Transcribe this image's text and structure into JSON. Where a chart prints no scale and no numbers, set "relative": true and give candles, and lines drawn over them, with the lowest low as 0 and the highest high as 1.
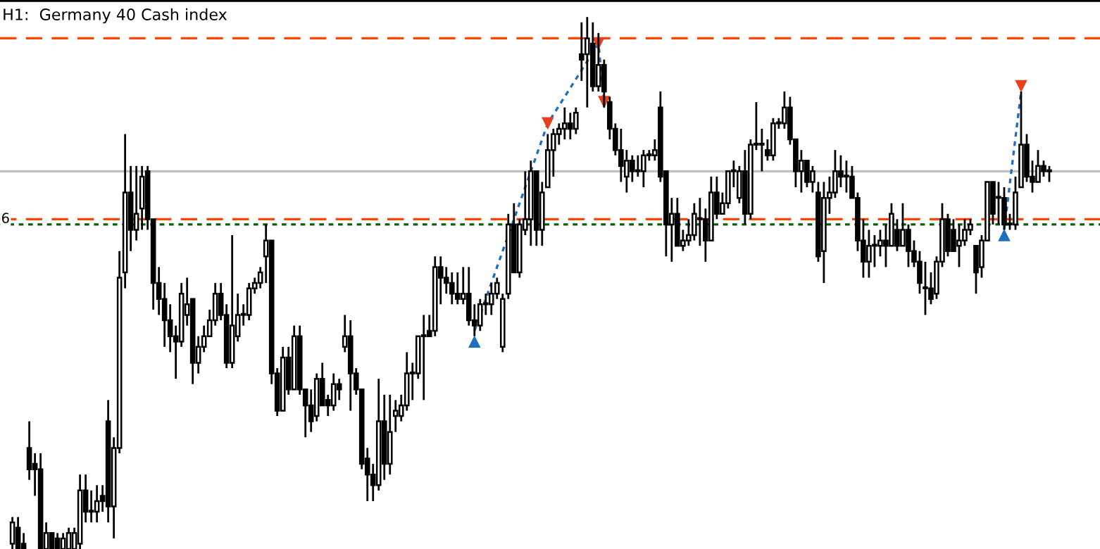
{
  "chart_data": {
    "type": "candlestick",
    "title": "H1:  Germany 40 Cash index",
    "relative": true,
    "annotations": [
      {
        "text": "6",
        "y": 0.62
      }
    ],
    "categories": [
      null,
      null,
      null,
      null,
      null,
      null,
      null,
      null,
      null,
      null,
      null,
      null,
      null,
      null,
      null,
      null,
      null,
      null,
      null,
      null,
      null,
      null,
      null,
      null,
      null,
      null,
      null,
      null,
      null,
      null,
      null,
      null,
      null,
      null,
      null,
      null,
      null,
      null,
      null,
      null,
      null,
      null,
      null,
      null,
      null,
      null,
      null,
      null,
      null,
      null,
      null,
      null,
      null,
      null,
      null,
      null,
      null,
      null,
      null,
      null,
      null,
      null,
      null,
      null,
      null,
      null,
      null,
      null,
      null,
      null,
      null,
      null,
      null,
      null,
      null,
      null,
      null,
      null,
      null,
      null,
      null,
      null,
      null,
      null,
      null,
      null,
      null,
      null,
      null,
      null,
      null,
      null,
      null,
      null,
      null,
      null,
      null,
      null,
      null,
      null,
      null,
      null,
      null,
      null,
      null,
      null,
      null,
      null,
      null,
      null,
      null,
      null,
      null,
      null,
      null,
      null,
      null,
      null,
      null,
      null,
      null,
      null,
      null,
      null,
      null,
      null,
      null,
      null,
      null,
      null,
      null,
      null,
      null,
      null,
      null,
      null,
      null,
      null,
      null,
      null,
      null,
      null,
      null,
      null,
      null,
      null,
      null,
      null,
      null,
      null,
      null,
      null,
      null,
      null,
      null,
      null,
      null,
      null,
      null,
      null,
      null,
      null,
      null,
      null,
      null,
      null,
      null,
      null,
      null,
      null,
      null,
      null,
      null,
      null,
      null,
      null,
      null,
      null,
      null,
      null,
      null,
      null,
      null,
      null,
      null
    ],
    "ohlc": [
      [
        0.01,
        0.06,
        0,
        0.05
      ],
      [
        0.04,
        0.06,
        0,
        0
      ],
      [
        0.01,
        0.03,
        0,
        0
      ],
      [
        0.19,
        0.24,
        0.13,
        0.15
      ],
      [
        0.16,
        0.18,
        0.1,
        0.15
      ],
      [
        0.15,
        0.18,
        0,
        0
      ],
      [
        0,
        0.05,
        0,
        0.03
      ],
      [
        0.03,
        0.03,
        0,
        0
      ],
      [
        0.02,
        0.03,
        0,
        0
      ],
      [
        0,
        0.03,
        0,
        0.02
      ],
      [
        0,
        0.04,
        0,
        0.03
      ],
      [
        0,
        0.04,
        0,
        0.03
      ],
      [
        0.01,
        0.14,
        0,
        0.11
      ],
      [
        0.11,
        0.14,
        0.05,
        0.07
      ],
      [
        0.07,
        0.11,
        0.05,
        0.07
      ],
      [
        0.07,
        0.12,
        0.05,
        0.09
      ],
      [
        0.1,
        0.12,
        0.07,
        0.09
      ],
      [
        0.24,
        0.28,
        0.05,
        0.08
      ],
      [
        0.08,
        0.21,
        0.02,
        0.19
      ],
      [
        0.19,
        0.56,
        0.18,
        0.51
      ],
      [
        0.52,
        0.78,
        0.49,
        0.67
      ],
      [
        0.67,
        0.72,
        0.56,
        0.6
      ],
      [
        0.6,
        0.72,
        0.58,
        0.63
      ],
      [
        0.64,
        0.72,
        0.6,
        0.7
      ],
      [
        0.71,
        0.72,
        0.6,
        0.62
      ],
      [
        0.62,
        0.62,
        0.45,
        0.5
      ],
      [
        0.5,
        0.53,
        0.44,
        0.47
      ],
      [
        0.47,
        0.5,
        0.38,
        0.43
      ],
      [
        0.43,
        0.46,
        0.37,
        0.4
      ],
      [
        0.4,
        0.42,
        0.32,
        0.39
      ],
      [
        0.39,
        0.5,
        0.38,
        0.48
      ],
      [
        0.44,
        0.51,
        0.42,
        0.46
      ],
      [
        0.47,
        0.47,
        0.31,
        0.35
      ],
      [
        0.35,
        0.4,
        0.33,
        0.38
      ],
      [
        0.38,
        0.42,
        0.37,
        0.4
      ],
      [
        0.4,
        0.45,
        0.4,
        0.43
      ],
      [
        0.43,
        0.5,
        0.42,
        0.48
      ],
      [
        0.48,
        0.5,
        0.43,
        0.44
      ],
      [
        0.44,
        0.46,
        0.34,
        0.35
      ],
      [
        0.35,
        0.59,
        0.34,
        0.42
      ],
      [
        0.4,
        0.48,
        0.39,
        0.44
      ],
      [
        0.44,
        0.46,
        0.42,
        0.44
      ],
      [
        0.44,
        0.5,
        0.43,
        0.49
      ],
      [
        0.49,
        0.51,
        0.48,
        0.5
      ],
      [
        0.5,
        0.53,
        0.49,
        0.52
      ],
      [
        0.55,
        0.61,
        0.5,
        0.58
      ],
      [
        0.58,
        0.58,
        0.31,
        0.33
      ],
      [
        0.33,
        0.34,
        0.25,
        0.26
      ],
      [
        0.26,
        0.38,
        0.26,
        0.36
      ],
      [
        0.36,
        0.38,
        0.29,
        0.3
      ],
      [
        0.3,
        0.42,
        0.3,
        0.4
      ],
      [
        0.4,
        0.42,
        0.29,
        0.3
      ],
      [
        0.3,
        0.3,
        0.21,
        0.27
      ],
      [
        0.27,
        0.3,
        0.22,
        0.24
      ],
      [
        0.25,
        0.33,
        0.24,
        0.32
      ],
      [
        0.32,
        0.35,
        0.27,
        0.27
      ],
      [
        0.28,
        0.29,
        0.25,
        0.27
      ],
      [
        0.27,
        0.33,
        0.26,
        0.31
      ],
      [
        0.31,
        0.32,
        0.28,
        0.3
      ],
      [
        0.38,
        0.44,
        0.37,
        0.4
      ],
      [
        0.4,
        0.43,
        0.26,
        0.33
      ],
      [
        0.33,
        0.34,
        0.29,
        0.3
      ],
      [
        0.3,
        0.3,
        0.15,
        0.16
      ],
      [
        0.17,
        0.19,
        0.09,
        0.14
      ],
      [
        0.14,
        0.16,
        0.09,
        0.12
      ],
      [
        0.12,
        0.32,
        0.11,
        0.24
      ],
      [
        0.24,
        0.29,
        0.13,
        0.16
      ],
      [
        0.16,
        0.29,
        0.14,
        0.22
      ],
      [
        0.25,
        0.28,
        0.22,
        0.26
      ],
      [
        0.25,
        0.29,
        0.24,
        0.27
      ],
      [
        0.27,
        0.37,
        0.26,
        0.33
      ],
      [
        0.33,
        0.35,
        0.28,
        0.33
      ],
      [
        0.33,
        0.4,
        0.32,
        0.4
      ],
      [
        0.4,
        0.44,
        0.28,
        0.4
      ],
      [
        0.41,
        0.44,
        0.4,
        0.4
      ],
      [
        0.41,
        0.55,
        0.4,
        0.53
      ],
      [
        0.53,
        0.55,
        0.46,
        0.51
      ],
      [
        0.51,
        0.53,
        0.48,
        0.5
      ],
      [
        0.5,
        0.52,
        0.46,
        0.48
      ],
      [
        0.48,
        0.52,
        0.46,
        0.47
      ],
      [
        0.47,
        0.53,
        0.46,
        0.48
      ],
      [
        0.48,
        0.53,
        0.42,
        0.43
      ],
      [
        0.43,
        0.46,
        0.4,
        0.42
      ],
      [
        0.42,
        0.47,
        0.41,
        0.46
      ],
      [
        0.46,
        0.48,
        0.44,
        0.46
      ],
      [
        0.46,
        0.5,
        0.44,
        0.48
      ],
      [
        0.48,
        0.51,
        0.47,
        0.5
      ],
      [
        0.38,
        0.48,
        0.37,
        0.47
      ],
      [
        0.48,
        0.63,
        0.47,
        0.61
      ],
      [
        0.61,
        0.65,
        0.52,
        0.52
      ],
      [
        0.52,
        0.62,
        0.51,
        0.61
      ],
      [
        0.6,
        0.71,
        0.59,
        0.62
      ],
      [
        0.62,
        0.73,
        0.57,
        0.71
      ],
      [
        0.71,
        0.71,
        0.57,
        0.6
      ],
      [
        0.6,
        0.69,
        0.57,
        0.67
      ],
      [
        0.68,
        0.78,
        0.68,
        0.75
      ],
      [
        0.75,
        0.79,
        0.7,
        0.78
      ],
      [
        0.78,
        0.8,
        0.76,
        0.79
      ],
      [
        0.79,
        0.83,
        0.77,
        0.8
      ],
      [
        0.8,
        0.82,
        0.77,
        0.79
      ],
      [
        0.79,
        0.83,
        0.78,
        0.82
      ],
      [
        0.93,
        0.99,
        0.88,
        0.92
      ],
      [
        0.93,
        1,
        0.83,
        0.96
      ],
      [
        0.95,
        0.99,
        0.86,
        0.87
      ],
      [
        0.87,
        0.97,
        0.86,
        0.91
      ],
      [
        0.91,
        0.92,
        0.83,
        0.86
      ],
      [
        0.84,
        0.85,
        0.77,
        0.79
      ],
      [
        0.79,
        0.8,
        0.74,
        0.75
      ],
      [
        0.75,
        0.79,
        0.69,
        0.72
      ],
      [
        0.7,
        0.75,
        0.67,
        0.73
      ],
      [
        0.73,
        0.74,
        0.69,
        0.71
      ],
      [
        0.71,
        0.74,
        0.7,
        0.71
      ],
      [
        0.71,
        0.75,
        0.68,
        0.74
      ],
      [
        0.74,
        0.75,
        0.73,
        0.74
      ],
      [
        0.74,
        0.77,
        0.73,
        0.75
      ],
      [
        0.83,
        0.86,
        0.69,
        0.7
      ],
      [
        0.71,
        0.71,
        0.55,
        0.61
      ],
      [
        0.61,
        0.66,
        0.54,
        0.63
      ],
      [
        0.63,
        0.66,
        0.57,
        0.57
      ],
      [
        0.57,
        0.6,
        0.56,
        0.58
      ],
      [
        0.58,
        0.62,
        0.57,
        0.59
      ],
      [
        0.59,
        0.65,
        0.58,
        0.63
      ],
      [
        0.62,
        0.66,
        0.57,
        0.62
      ],
      [
        0.62,
        0.64,
        0.54,
        0.58
      ],
      [
        0.58,
        0.7,
        0.58,
        0.67
      ],
      [
        0.67,
        0.7,
        0.62,
        0.63
      ],
      [
        0.63,
        0.67,
        0.63,
        0.65
      ],
      [
        0.65,
        0.71,
        0.64,
        0.71
      ],
      [
        0.71,
        0.73,
        0.68,
        0.71
      ],
      [
        0.66,
        0.72,
        0.65,
        0.71
      ],
      [
        0.71,
        0.75,
        0.61,
        0.63
      ],
      [
        0.63,
        0.77,
        0.62,
        0.76
      ],
      [
        0.76,
        0.84,
        0.75,
        0.76
      ],
      [
        0.76,
        0.79,
        0.71,
        0.76
      ],
      [
        0.75,
        0.77,
        0.73,
        0.74
      ],
      [
        0.74,
        0.81,
        0.73,
        0.8
      ],
      [
        0.8,
        0.81,
        0.79,
        0.8
      ],
      [
        0.8,
        0.86,
        0.79,
        0.83
      ],
      [
        0.83,
        0.85,
        0.76,
        0.77
      ],
      [
        0.77,
        0.77,
        0.68,
        0.71
      ],
      [
        0.71,
        0.75,
        0.67,
        0.73
      ],
      [
        0.73,
        0.73,
        0.68,
        0.69
      ],
      [
        0.69,
        0.72,
        0.67,
        0.71
      ],
      [
        0.67,
        0.69,
        0.54,
        0.55
      ],
      [
        0.56,
        0.69,
        0.5,
        0.66
      ],
      [
        0.66,
        0.7,
        0.63,
        0.67
      ],
      [
        0.67,
        0.75,
        0.66,
        0.71
      ],
      [
        0.71,
        0.74,
        0.68,
        0.7
      ],
      [
        0.7,
        0.73,
        0.67,
        0.7
      ],
      [
        0.7,
        0.72,
        0.66,
        0.66
      ],
      [
        0.66,
        0.67,
        0.56,
        0.58
      ],
      [
        0.58,
        0.62,
        0.51,
        0.54
      ],
      [
        0.54,
        0.6,
        0.51,
        0.57
      ],
      [
        0.57,
        0.59,
        0.53,
        0.57
      ],
      [
        0.57,
        0.6,
        0.55,
        0.58
      ],
      [
        0.58,
        0.61,
        0.53,
        0.57
      ],
      [
        0.57,
        0.65,
        0.57,
        0.63
      ],
      [
        0.6,
        0.62,
        0.56,
        0.57
      ],
      [
        0.57,
        0.65,
        0.57,
        0.6
      ],
      [
        0.6,
        0.61,
        0.53,
        0.56
      ],
      [
        0.56,
        0.58,
        0.53,
        0.54
      ],
      [
        0.54,
        0.56,
        0.48,
        0.5
      ],
      [
        0.49,
        0.54,
        0.44,
        0.49
      ],
      [
        0.49,
        0.52,
        0.46,
        0.47
      ],
      [
        0.48,
        0.55,
        0.47,
        0.54
      ],
      [
        0.54,
        0.65,
        0.53,
        0.62
      ],
      [
        0.62,
        0.63,
        0.55,
        0.56
      ],
      [
        0.6,
        0.62,
        0.56,
        0.56
      ],
      [
        0.57,
        0.61,
        0.53,
        0.58
      ],
      [
        0.58,
        0.62,
        0.57,
        0.6
      ],
      [
        0.6,
        0.62,
        0.59,
        0.61
      ],
      [
        0.57,
        0.57,
        0.48,
        0.52
      ],
      [
        0.53,
        0.59,
        0.51,
        0.58
      ],
      [
        0.58,
        0.69,
        0.58,
        0.69
      ],
      [
        0.69,
        0.69,
        0.61,
        0.63
      ],
      [
        0.66,
        0.69,
        0.61,
        0.66
      ],
      [
        0.66,
        0.68,
        0.6,
        0.61
      ],
      [
        0.61,
        0.63,
        0.6,
        0.61
      ],
      [
        0.61,
        0.7,
        0.6,
        0.67
      ],
      [
        0.68,
        0.86,
        0.68,
        0.76
      ],
      [
        0.76,
        0.78,
        0.69,
        0.7
      ],
      [
        0.7,
        0.73,
        0.67,
        0.69
      ],
      [
        0.69,
        0.75,
        0.69,
        0.72
      ],
      [
        0.72,
        0.73,
        0.7,
        0.71
      ],
      [
        0.71,
        0.72,
        0.69,
        0.71
      ]
    ],
    "color": "#000000",
    "series": [
      {
        "type": "line",
        "color": "#1e6fc0",
        "line_style": "dotted",
        "values": [
          null,
          null,
          null,
          null,
          null,
          null,
          null,
          null,
          null,
          null,
          null,
          null,
          null,
          null,
          null,
          null,
          null,
          null,
          null,
          null,
          null,
          null,
          null,
          null,
          null,
          null,
          null,
          null,
          null,
          null,
          null,
          null,
          null,
          null,
          null,
          null,
          null,
          null,
          null,
          null,
          null,
          null,
          null,
          null,
          null,
          null,
          null,
          null,
          null,
          null,
          null,
          null,
          null,
          null,
          null,
          null,
          null,
          null,
          null,
          null,
          null,
          null,
          null,
          null,
          null,
          null,
          null,
          null,
          null,
          null,
          null,
          null,
          null,
          null,
          null,
          null,
          null,
          null,
          null,
          null,
          null,
          null,
          0.41,
          null,
          null,
          null,
          null,
          null,
          null,
          null,
          null,
          null,
          null,
          null,
          null,
          0.8,
          null,
          null,
          null,
          null,
          null,
          null,
          null,
          null,
          0.95,
          0.84,
          null,
          null,
          null,
          null,
          null,
          null,
          null,
          null,
          null,
          null,
          null,
          null,
          null,
          null,
          null,
          null,
          null,
          null,
          null,
          null,
          null,
          null,
          null,
          null,
          null,
          null,
          null,
          null,
          null,
          null,
          null,
          null,
          null,
          null,
          null,
          null,
          null,
          null,
          null,
          null,
          null,
          null,
          null,
          null,
          null,
          null,
          null,
          null,
          null,
          null,
          null,
          null,
          null,
          null,
          null,
          null,
          null,
          null,
          null,
          null,
          null,
          null,
          null,
          null,
          null,
          null,
          null,
          null,
          null,
          null,
          null,
          null,
          null,
          null,
          null,
          null,
          null,
          null,
          null
        ]
      },
      {
        "type": "line",
        "color": "#1e6fc0",
        "line_style": "dotted",
        "values": [
          null,
          null,
          null,
          null,
          null,
          null,
          null,
          null,
          null,
          null,
          null,
          null,
          null,
          null,
          null,
          null,
          null,
          null,
          null,
          null,
          null,
          null,
          null,
          null,
          null,
          null,
          null,
          null,
          null,
          null,
          null,
          null,
          null,
          null,
          null,
          null,
          null,
          null,
          null,
          null,
          null,
          null,
          null,
          null,
          null,
          null,
          null,
          null,
          null,
          null,
          null,
          null,
          null,
          null,
          null,
          null,
          null,
          null,
          null,
          null,
          null,
          null,
          null,
          null,
          null,
          null,
          null,
          null,
          null,
          null,
          null,
          null,
          null,
          null,
          null,
          null,
          null,
          null,
          null,
          null,
          null,
          null,
          null,
          null,
          null,
          null,
          null,
          null,
          null,
          null,
          null,
          null,
          null,
          null,
          null,
          null,
          null,
          null,
          null,
          null,
          null,
          null,
          null,
          null,
          null,
          null,
          null,
          null,
          null,
          null,
          null,
          null,
          null,
          null,
          null,
          null,
          null,
          null,
          null,
          null,
          null,
          null,
          null,
          null,
          null,
          null,
          null,
          null,
          null,
          null,
          null,
          null,
          null,
          null,
          null,
          null,
          null,
          null,
          null,
          null,
          null,
          null,
          null,
          null,
          null,
          null,
          null,
          null,
          null,
          null,
          null,
          null,
          null,
          null,
          null,
          null,
          null,
          null,
          null,
          null,
          null,
          null,
          null,
          null,
          null,
          null,
          null,
          null,
          null,
          null,
          null,
          null,
          null,
          null,
          null,
          null,
          0.6,
          null,
          null,
          0.86,
          null,
          null,
          null,
          null,
          null
        ]
      },
      {
        "type": "scatter",
        "color": "#1e6fc0",
        "marker": "triangle",
        "values": [
          null,
          null,
          null,
          null,
          null,
          null,
          null,
          null,
          null,
          null,
          null,
          null,
          null,
          null,
          null,
          null,
          null,
          null,
          null,
          null,
          null,
          null,
          null,
          null,
          null,
          null,
          null,
          null,
          null,
          null,
          null,
          null,
          null,
          null,
          null,
          null,
          null,
          null,
          null,
          null,
          null,
          null,
          null,
          null,
          null,
          null,
          null,
          null,
          null,
          null,
          null,
          null,
          null,
          null,
          null,
          null,
          null,
          null,
          null,
          null,
          null,
          null,
          null,
          null,
          null,
          null,
          null,
          null,
          null,
          null,
          null,
          null,
          null,
          null,
          null,
          null,
          null,
          null,
          null,
          null,
          null,
          null,
          0.39,
          null,
          null,
          null,
          null,
          null,
          null,
          null,
          null,
          null,
          null,
          null,
          null,
          null,
          null,
          null,
          null,
          null,
          null,
          null,
          null,
          null,
          null,
          null,
          null,
          null,
          null,
          null,
          null,
          null,
          null,
          null,
          null,
          null,
          null,
          null,
          null,
          null,
          null,
          null,
          null,
          null,
          null,
          null,
          null,
          null,
          null,
          null,
          null,
          null,
          null,
          null,
          null,
          null,
          null,
          null,
          null,
          null,
          null,
          null,
          null,
          null,
          null,
          null,
          null,
          null,
          null,
          null,
          null,
          null,
          null,
          null,
          null,
          null,
          null,
          null,
          null,
          null,
          null,
          null,
          null,
          null,
          null,
          null,
          null,
          null,
          null,
          null,
          null,
          null,
          null,
          null,
          null,
          null,
          0.59,
          null,
          null,
          null,
          null,
          null,
          null,
          null,
          null
        ]
      },
      {
        "type": "scatter",
        "color": "#e8401c",
        "marker": "triangle",
        "values": [
          null,
          null,
          null,
          null,
          null,
          null,
          null,
          null,
          null,
          null,
          null,
          null,
          null,
          null,
          null,
          null,
          null,
          null,
          null,
          null,
          null,
          null,
          null,
          null,
          null,
          null,
          null,
          null,
          null,
          null,
          null,
          null,
          null,
          null,
          null,
          null,
          null,
          null,
          null,
          null,
          null,
          null,
          null,
          null,
          null,
          null,
          null,
          null,
          null,
          null,
          null,
          null,
          null,
          null,
          null,
          null,
          null,
          null,
          null,
          null,
          null,
          null,
          null,
          null,
          null,
          null,
          null,
          null,
          null,
          null,
          null,
          null,
          null,
          null,
          null,
          null,
          null,
          null,
          null,
          null,
          null,
          null,
          null,
          null,
          null,
          null,
          null,
          null,
          null,
          null,
          null,
          null,
          null,
          null,
          null,
          0.8,
          null,
          null,
          null,
          null,
          null,
          null,
          null,
          null,
          0.95,
          0.84,
          null,
          null,
          null,
          null,
          null,
          null,
          null,
          null,
          null,
          null,
          null,
          null,
          null,
          null,
          null,
          null,
          null,
          null,
          null,
          null,
          null,
          null,
          null,
          null,
          null,
          null,
          null,
          null,
          null,
          null,
          null,
          null,
          null,
          null,
          null,
          null,
          null,
          null,
          null,
          null,
          null,
          null,
          null,
          null,
          null,
          null,
          null,
          null,
          null,
          null,
          null,
          null,
          null,
          null,
          null,
          null,
          null,
          null,
          null,
          null,
          null,
          null,
          null,
          null,
          null,
          null,
          null,
          null,
          null,
          null,
          null,
          null,
          null,
          0.87,
          null,
          null,
          null,
          null,
          null
        ]
      }
    ],
    "ref_lines": [
      {
        "axis": "y",
        "value": 0.96,
        "color": "#ff4500",
        "line_style": "dashed"
      },
      {
        "axis": "y",
        "value": 0.71,
        "color": "#c0c0c0",
        "line_style": "solid"
      },
      {
        "axis": "y",
        "value": 0.62,
        "color": "#ff4500",
        "line_style": "dashed"
      },
      {
        "axis": "y",
        "value": 0.61,
        "color": "#006400",
        "line_style": "dotted"
      }
    ]
  }
}
